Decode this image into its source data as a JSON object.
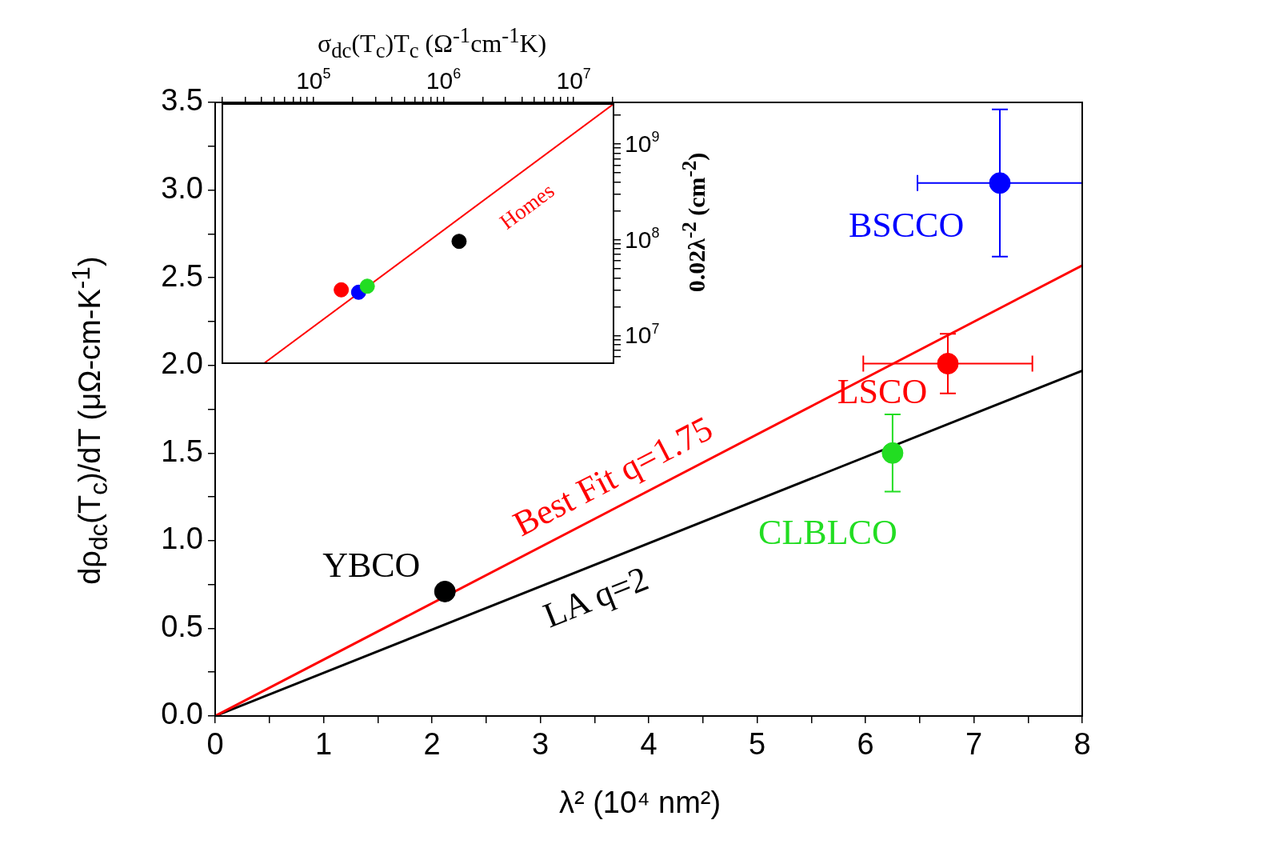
{
  "chart_data": [
    {
      "type": "scatter",
      "xlabel": "λ² (10⁴ nm²)",
      "ylabel": "dρ$_{dc}$(T$_{c}$)/dT (μΩ-cm-K$^{-1}$)",
      "xlim": [
        0,
        8
      ],
      "ylim": [
        0,
        3.5
      ],
      "xticks": [
        0,
        {
          "value": 0.5,
          "label": null
        },
        1,
        {
          "value": 1.5,
          "label": null
        },
        2,
        {
          "value": 2.5,
          "label": null
        },
        3,
        {
          "value": 3.5,
          "label": null
        },
        4,
        {
          "value": 4.5,
          "label": null
        },
        5,
        {
          "value": 5.5,
          "label": null
        },
        6,
        {
          "value": 6.5,
          "label": null
        },
        7,
        {
          "value": 7.5,
          "label": null
        },
        8
      ],
      "yticks": [
        {
          "value": 0,
          "label": "0.0"
        },
        {
          "value": 0.25,
          "label": null
        },
        {
          "value": 0.5,
          "label": "0.5"
        },
        {
          "value": 0.75,
          "label": null
        },
        {
          "value": 1,
          "label": "1.0"
        },
        {
          "value": 1.25,
          "label": null
        },
        {
          "value": 1.5,
          "label": "1.5"
        },
        {
          "value": 1.75,
          "label": null
        },
        {
          "value": 2,
          "label": "2.0"
        },
        {
          "value": 2.25,
          "label": null
        },
        {
          "value": 2.5,
          "label": "2.5"
        },
        {
          "value": 2.75,
          "label": null
        },
        {
          "value": 3,
          "label": "3.0"
        },
        {
          "value": 3.25,
          "label": null
        },
        {
          "value": 3.5,
          "label": "3.5"
        }
      ],
      "grid": false,
      "legend": false,
      "marker": "circle",
      "series": [
        {
          "type": "line",
          "name": "Best Fit q=1.75",
          "color": "#ff0000",
          "marker": "none",
          "x": [
            0,
            8
          ],
          "values": [
            0,
            2.57
          ]
        },
        {
          "type": "line",
          "name": "LA q=2",
          "color": "#000000",
          "marker": "none",
          "x": [
            0,
            8
          ],
          "values": [
            0,
            1.97
          ]
        },
        {
          "name": "YBCO",
          "color": "#000000",
          "x": [
            2.12
          ],
          "values": [
            0.71
          ]
        },
        {
          "name": "CLBLCO",
          "color": "#22dd22",
          "x": [
            6.25
          ],
          "values": [
            1.5
          ],
          "errors": [
            0.22
          ]
        },
        {
          "name": "LSCO",
          "color": "#ff0000",
          "x": [
            6.76
          ],
          "values": [
            2.01
          ],
          "errors": [
            0.17
          ],
          "xerrors": [
            0.78
          ]
        },
        {
          "name": "BSCCO",
          "color": "#0000ff",
          "x": [
            7.24
          ],
          "values": [
            3.04
          ],
          "errors": [
            0.42
          ],
          "xerrors": [
            0.76
          ]
        }
      ]
    },
    {
      "type": "scatter",
      "xlabel": "σ$_{dc}$(T$_{c}$)T$_{c}$ (Ω$^{-1}$cm$^{-1}$K)",
      "ylabel": "0.02λ$^{-2}$ (cm$^{-2}$)",
      "log": "xy",
      "xlim": [
        20000,
        20300000
      ],
      "ylim": [
        5150000,
        2600000000
      ],
      "xticks": [
        {
          "value": 20000,
          "label": null
        },
        {
          "value": 30000,
          "label": null
        },
        {
          "value": 40000,
          "label": null
        },
        {
          "value": 50000,
          "label": null
        },
        {
          "value": 60000,
          "label": null
        },
        {
          "value": 70000,
          "label": null
        },
        {
          "value": 80000,
          "label": null
        },
        {
          "value": 90000,
          "label": null
        },
        {
          "value": 100000,
          "label": "10$^{5}$"
        },
        {
          "value": 200000,
          "label": null
        },
        {
          "value": 300000,
          "label": null
        },
        {
          "value": 400000,
          "label": null
        },
        {
          "value": 500000,
          "label": null
        },
        {
          "value": 600000,
          "label": null
        },
        {
          "value": 700000,
          "label": null
        },
        {
          "value": 800000,
          "label": null
        },
        {
          "value": 900000,
          "label": null
        },
        {
          "value": 1000000,
          "label": "10$^{6}$"
        },
        {
          "value": 2000000,
          "label": null
        },
        {
          "value": 3000000,
          "label": null
        },
        {
          "value": 4000000,
          "label": null
        },
        {
          "value": 5000000,
          "label": null
        },
        {
          "value": 6000000,
          "label": null
        },
        {
          "value": 7000000,
          "label": null
        },
        {
          "value": 8000000,
          "label": null
        },
        {
          "value": 9000000,
          "label": null
        },
        {
          "value": 10000000,
          "label": "10$^{7}$"
        },
        {
          "value": 20000000,
          "label": null
        }
      ],
      "yticks": [
        {
          "value": 6000000,
          "label": null
        },
        {
          "value": 7000000,
          "label": null
        },
        {
          "value": 8000000,
          "label": null
        },
        {
          "value": 9000000,
          "label": null
        },
        {
          "value": 10000000,
          "label": "10$^{7}$"
        },
        {
          "value": 20000000,
          "label": null
        },
        {
          "value": 30000000,
          "label": null
        },
        {
          "value": 40000000,
          "label": null
        },
        {
          "value": 50000000,
          "label": null
        },
        {
          "value": 60000000,
          "label": null
        },
        {
          "value": 70000000,
          "label": null
        },
        {
          "value": 80000000,
          "label": null
        },
        {
          "value": 90000000,
          "label": null
        },
        {
          "value": 100000000,
          "label": "10$^{8}$"
        },
        {
          "value": 200000000,
          "label": null
        },
        {
          "value": 300000000,
          "label": null
        },
        {
          "value": 400000000,
          "label": null
        },
        {
          "value": 500000000,
          "label": null
        },
        {
          "value": 600000000,
          "label": null
        },
        {
          "value": 700000000,
          "label": null
        },
        {
          "value": 800000000,
          "label": null
        },
        {
          "value": 900000000,
          "label": null
        },
        {
          "value": 1000000000,
          "label": "10$^{9}$"
        },
        {
          "value": 2000000000,
          "label": null
        }
      ],
      "grid": false,
      "legend": false,
      "marker": "circle",
      "series": [
        {
          "type": "line",
          "name": "Homes",
          "color": "#ff0000",
          "marker": "none",
          "x": [
            41900,
            20300000
          ],
          "values": [
            5150000,
            2600000000
          ]
        },
        {
          "color": "#ff0000",
          "x": [
            164000
          ],
          "values": [
            30000000
          ]
        },
        {
          "color": "#22dd22",
          "x": [
            260000
          ],
          "values": [
            32700000
          ]
        },
        {
          "color": "#0000ff",
          "x": [
            223000
          ],
          "values": [
            28300000
          ]
        },
        {
          "color": "#000000",
          "x": [
            1320000
          ],
          "values": [
            96000000
          ]
        }
      ]
    }
  ]
}
